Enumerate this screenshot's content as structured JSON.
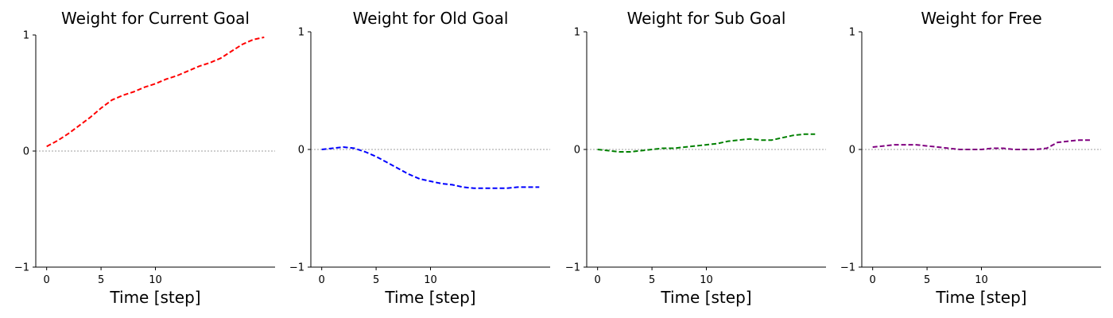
{
  "chart_data": [
    {
      "type": "line",
      "title": "Weight for Current Goal",
      "xlabel": "Time [step]",
      "ylabel": "",
      "xlim": [
        -1,
        21
      ],
      "ylim": [
        -1,
        1
      ],
      "xticks": [
        0,
        5,
        10
      ],
      "yticks": [
        -1,
        0,
        1
      ],
      "grid": false,
      "reference_line_y": 0,
      "series": [
        {
          "color": "#ff0000",
          "x": [
            0,
            1,
            2,
            3,
            4,
            5,
            6,
            7,
            8,
            9,
            10,
            11,
            12,
            13,
            14,
            15,
            16,
            17,
            18,
            19,
            20
          ],
          "y": [
            0.04,
            0.09,
            0.15,
            0.22,
            0.29,
            0.37,
            0.44,
            0.48,
            0.51,
            0.55,
            0.58,
            0.62,
            0.65,
            0.69,
            0.73,
            0.76,
            0.8,
            0.86,
            0.92,
            0.96,
            0.98
          ]
        }
      ]
    },
    {
      "type": "line",
      "title": "Weight for Old Goal",
      "xlabel": "Time [step]",
      "ylabel": "",
      "xlim": [
        -1,
        21
      ],
      "ylim": [
        -1,
        1
      ],
      "xticks": [
        0,
        5,
        10
      ],
      "yticks": [
        -1,
        0,
        1
      ],
      "grid": false,
      "reference_line_y": 0,
      "series": [
        {
          "color": "#0000ff",
          "x": [
            0,
            1,
            2,
            3,
            4,
            5,
            6,
            7,
            8,
            9,
            10,
            11,
            12,
            13,
            14,
            15,
            16,
            17,
            18,
            19,
            20
          ],
          "y": [
            0.0,
            0.01,
            0.02,
            0.01,
            -0.02,
            -0.06,
            -0.11,
            -0.16,
            -0.21,
            -0.25,
            -0.27,
            -0.29,
            -0.3,
            -0.32,
            -0.33,
            -0.33,
            -0.33,
            -0.33,
            -0.32,
            -0.32,
            -0.32
          ]
        }
      ]
    },
    {
      "type": "line",
      "title": "Weight for Sub Goal",
      "xlabel": "Time [step]",
      "ylabel": "",
      "xlim": [
        -1,
        21
      ],
      "ylim": [
        -1,
        1
      ],
      "xticks": [
        0,
        5,
        10
      ],
      "yticks": [
        -1,
        0,
        1
      ],
      "grid": false,
      "reference_line_y": 0,
      "series": [
        {
          "color": "#008000",
          "x": [
            0,
            1,
            2,
            3,
            4,
            5,
            6,
            7,
            8,
            9,
            10,
            11,
            12,
            13,
            14,
            15,
            16,
            17,
            18,
            19,
            20
          ],
          "y": [
            0.0,
            -0.01,
            -0.02,
            -0.02,
            -0.01,
            0.0,
            0.01,
            0.01,
            0.02,
            0.03,
            0.04,
            0.05,
            0.07,
            0.08,
            0.09,
            0.08,
            0.08,
            0.1,
            0.12,
            0.13,
            0.13
          ]
        }
      ]
    },
    {
      "type": "line",
      "title": "Weight for Free",
      "xlabel": "Time [step]",
      "ylabel": "",
      "xlim": [
        -1,
        21
      ],
      "ylim": [
        -1,
        1
      ],
      "xticks": [
        0,
        5,
        10
      ],
      "yticks": [
        -1,
        0,
        1
      ],
      "grid": false,
      "reference_line_y": 0,
      "series": [
        {
          "color": "#800080",
          "x": [
            0,
            1,
            2,
            3,
            4,
            5,
            6,
            7,
            8,
            9,
            10,
            11,
            12,
            13,
            14,
            15,
            16,
            17,
            18,
            19,
            20
          ],
          "y": [
            0.02,
            0.03,
            0.04,
            0.04,
            0.04,
            0.03,
            0.02,
            0.01,
            0.0,
            0.0,
            0.0,
            0.01,
            0.01,
            0.0,
            0.0,
            0.0,
            0.01,
            0.06,
            0.07,
            0.08,
            0.08
          ]
        }
      ]
    }
  ]
}
